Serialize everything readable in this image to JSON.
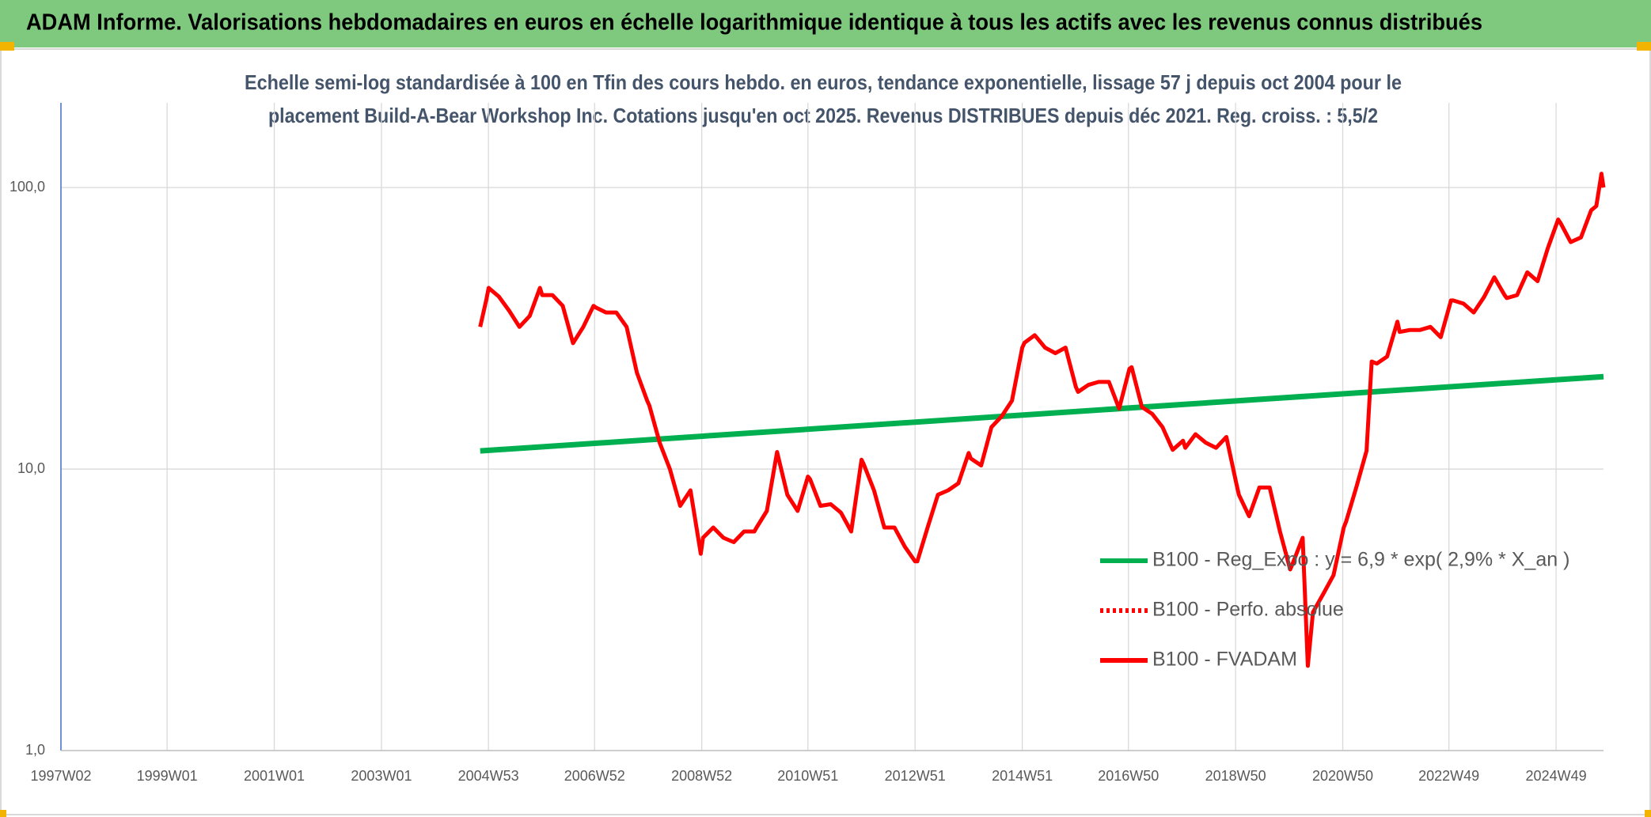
{
  "chart_data": {
    "type": "line",
    "title": "ADAM Informe. Valorisations hebdomadaires en euros en échelle logarithmique identique à tous les actifs avec les revenus connus distribués",
    "subtitle": [
      "Echelle semi-log standardisée à 100 en Tfin des cours hebdo. en euros, tendance exponentielle, lissage 57 j depuis oct 2004 pour le",
      "placement Build-A-Bear Workshop Inc. Cotations jusqu'en oct 2025. Revenus DISTRIBUES depuis déc 2021. Reg. croiss. : 5,5/2"
    ],
    "log_scale": true,
    "grid": true,
    "legend": "right",
    "ylim": [
      1,
      200
    ],
    "yticks": [
      {
        "value": 1,
        "label": "1,0"
      },
      {
        "value": 10,
        "label": "10,0"
      },
      {
        "value": 100,
        "label": "100,0"
      }
    ],
    "xlim": [
      "1997W02",
      "2025W43"
    ],
    "xticks": [
      "1997W02",
      "1999W01",
      "2001W01",
      "2003W01",
      "2004W53",
      "2006W52",
      "2008W52",
      "2010W51",
      "2012W51",
      "2014W51",
      "2016W50",
      "2018W50",
      "2020W50",
      "2022W49",
      "2024W49"
    ],
    "series": [
      {
        "name": "B100 - Reg_Expo : y = 6,9 * exp( 2,9% *  X_an )",
        "color": "#00b050",
        "style": "solid",
        "x": [
          "2004W45",
          "2025W43"
        ],
        "values": [
          11.6,
          21.3
        ]
      },
      {
        "name": "B100 - Perfo. absolue",
        "color": "#ff0000",
        "style": "dotted",
        "x": [],
        "values": []
      },
      {
        "name": "B100 - FVADAM",
        "color": "#ff0000",
        "style": "solid",
        "x": [
          "2004W45",
          "2004W51",
          "2005W01",
          "2005W11",
          "2005W21",
          "2005W31",
          "2005W41",
          "2005W51",
          "2006W01",
          "2006W11",
          "2006W21",
          "2006W31",
          "2006W41",
          "2006W51",
          "2007W01",
          "2007W11",
          "2007W21",
          "2007W31",
          "2007W41",
          "2007W51",
          "2008W01",
          "2008W11",
          "2008W21",
          "2008W31",
          "2008W41",
          "2008W51",
          "2009W01",
          "2009W11",
          "2009W21",
          "2009W31",
          "2009W41",
          "2009W51",
          "2010W01",
          "2010W11",
          "2010W21",
          "2010W31",
          "2010W41",
          "2010W51",
          "2011W01",
          "2011W11",
          "2011W21",
          "2011W31",
          "2011W41",
          "2011W51",
          "2012W01",
          "2012W11",
          "2012W21",
          "2012W31",
          "2012W41",
          "2012W51",
          "2013W01",
          "2013W11",
          "2013W21",
          "2013W31",
          "2013W41",
          "2013W51",
          "2014W01",
          "2014W11",
          "2014W21",
          "2014W31",
          "2014W41",
          "2014W51",
          "2015W01",
          "2015W11",
          "2015W21",
          "2015W31",
          "2015W41",
          "2015W51",
          "2016W01",
          "2016W11",
          "2016W21",
          "2016W31",
          "2016W41",
          "2016W51",
          "2017W01",
          "2017W11",
          "2017W21",
          "2017W31",
          "2017W41",
          "2017W51",
          "2018W01",
          "2018W11",
          "2018W21",
          "2018W31",
          "2018W41",
          "2018W51",
          "2019W01",
          "2019W11",
          "2019W21",
          "2019W31",
          "2019W41",
          "2019W51",
          "2020W01",
          "2020W11",
          "2020W16",
          "2020W21",
          "2020W31",
          "2020W41",
          "2020W51",
          "2021W01",
          "2021W11",
          "2021W21",
          "2021W26",
          "2021W31",
          "2021W41",
          "2021W51",
          "2022W01",
          "2022W11",
          "2022W21",
          "2022W31",
          "2022W41",
          "2022W51",
          "2023W01",
          "2023W11",
          "2023W21",
          "2023W31",
          "2023W41",
          "2023W51",
          "2024W01",
          "2024W11",
          "2024W21",
          "2024W31",
          "2024W41",
          "2024W51",
          "2025W01",
          "2025W11",
          "2025W21",
          "2025W31",
          "2025W36",
          "2025W41",
          "2025W43"
        ],
        "values": [
          32,
          40,
          44,
          41,
          36.5,
          32,
          35,
          44,
          41.5,
          41.5,
          38,
          28,
          32,
          38,
          37.5,
          36,
          36,
          32,
          22,
          17.5,
          16.8,
          12.4,
          10,
          7.4,
          8.4,
          5,
          5.7,
          6.2,
          5.7,
          5.5,
          6,
          6,
          6.2,
          7.1,
          11.5,
          8.1,
          7.1,
          9.4,
          9.2,
          7.4,
          7.5,
          7,
          6,
          10.8,
          10.4,
          8.4,
          6.2,
          6.2,
          5.3,
          4.7,
          4.7,
          6.2,
          8.1,
          8.4,
          8.9,
          11.4,
          10.9,
          10.3,
          14.1,
          15.4,
          17.5,
          27,
          28.1,
          29.9,
          27,
          25.8,
          27,
          19.6,
          18.8,
          19.9,
          20.4,
          20.4,
          16.4,
          22.7,
          23,
          16.6,
          15.7,
          14.1,
          11.7,
          12.6,
          11.9,
          13.3,
          12.4,
          11.9,
          13,
          8.8,
          8.1,
          6.8,
          8.6,
          8.6,
          6,
          4.4,
          4.6,
          5.7,
          2,
          3.1,
          3.6,
          4.2,
          6.2,
          6.5,
          8.6,
          11.6,
          24.1,
          23.7,
          25.1,
          33.4,
          30.7,
          31.2,
          31.2,
          32,
          29.4,
          39.7,
          39.7,
          38.7,
          36,
          40.8,
          48,
          41.5,
          40.5,
          41.5,
          50,
          46.5,
          61,
          77,
          75,
          64,
          66.5,
          83,
          86,
          112,
          100
        ]
      }
    ]
  }
}
